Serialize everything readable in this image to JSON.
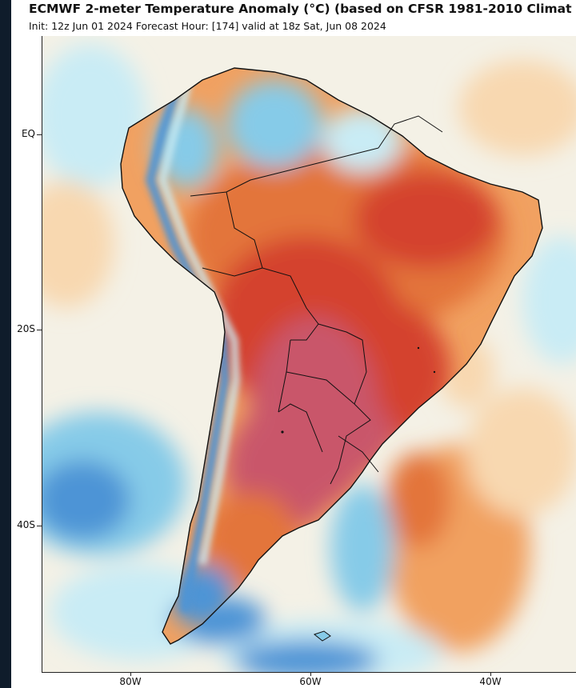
{
  "title": "ECMWF 2-meter Temperature Anomaly (°C) (based on CFSR 1981-2010 Climat",
  "subtitle": "Init: 12z Jun 01 2024   Forecast Hour: [174]   valid at 18z Sat, Jun 08 2024",
  "axes": {
    "lat_labels": [
      "EQ",
      "20S",
      "40S"
    ],
    "lon_labels": [
      "80W",
      "60W",
      "40W"
    ]
  },
  "colors": {
    "ocean_neutral": "#f4f1e6",
    "cool_pale": "#c9ecf5",
    "cool_mid": "#86cbe8",
    "cool_strong": "#4d94d6",
    "warm_pale": "#f8d8b0",
    "warm_mid": "#f1a161",
    "warm_orange": "#e3743a",
    "warm_red": "#d4432e",
    "hot_magenta": "#c9566a",
    "border_black": "#111111"
  },
  "chart_data": {
    "type": "heatmap",
    "variable": "2-meter Temperature Anomaly (°C)",
    "region": "South America",
    "lon_range": [
      -90,
      -30
    ],
    "lat_range": [
      10,
      -57
    ],
    "x_ticks": [
      "80W",
      "60W",
      "40W"
    ],
    "y_ticks": [
      "EQ",
      "20S",
      "40S"
    ]
  }
}
